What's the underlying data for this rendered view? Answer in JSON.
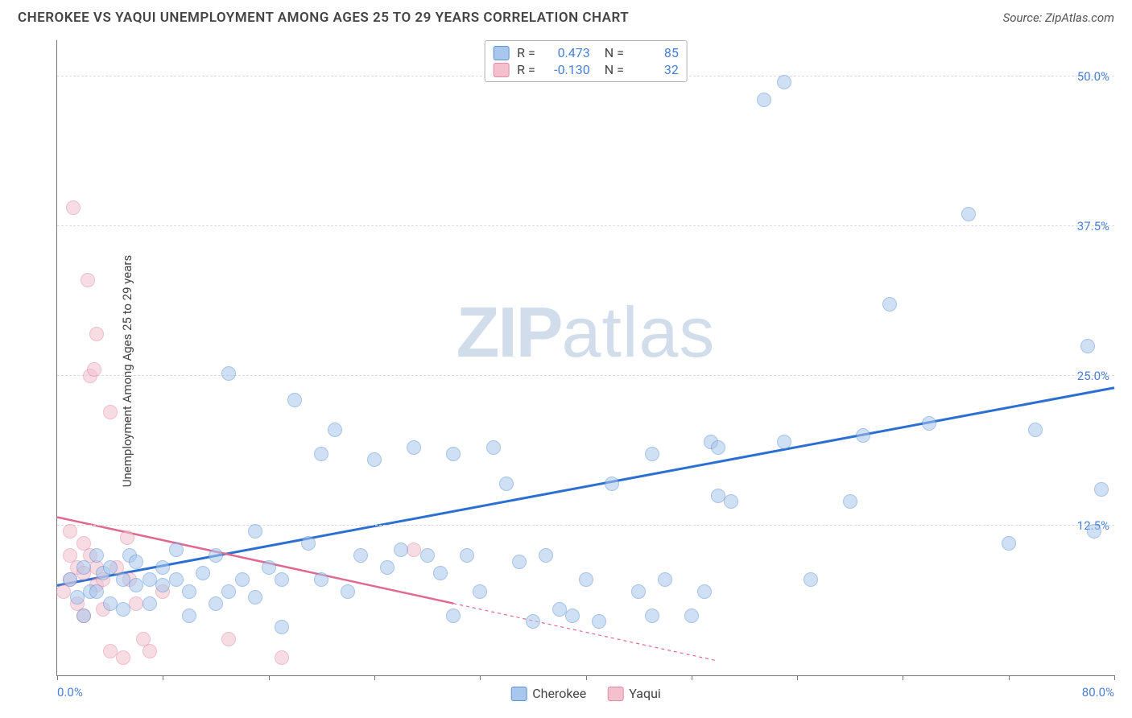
{
  "title": "CHEROKEE VS YAQUI UNEMPLOYMENT AMONG AGES 25 TO 29 YEARS CORRELATION CHART",
  "source": "Source: ZipAtlas.com",
  "ylabel": "Unemployment Among Ages 25 to 29 years",
  "watermark_a": "ZIP",
  "watermark_b": "atlas",
  "chart": {
    "type": "scatter",
    "xlim": [
      0,
      80
    ],
    "ylim": [
      0,
      53
    ],
    "yticks": [
      12.5,
      25.0,
      37.5,
      50.0
    ],
    "ytick_labels": [
      "12.5%",
      "25.0%",
      "37.5%",
      "50.0%"
    ],
    "xlabel_min": "0.0%",
    "xlabel_max": "80.0%",
    "xtick_positions": [
      0,
      8,
      16,
      24,
      32,
      40,
      48,
      56,
      64,
      72,
      80
    ],
    "grid_color": "#dcdcdc",
    "axis_color": "#777777",
    "background_color": "#ffffff",
    "point_radius": 9,
    "point_opacity": 0.55,
    "series": {
      "cherokee": {
        "label": "Cherokee",
        "fill": "#a9c6ec",
        "stroke": "#5f93d4",
        "line_color": "#2b6fd1",
        "R": "0.473",
        "N": "85",
        "trend": {
          "x1": 0,
          "y1": 7.5,
          "x2": 80,
          "y2": 24.0
        },
        "points": [
          [
            1,
            8
          ],
          [
            1.5,
            6.5
          ],
          [
            2,
            9
          ],
          [
            2,
            5
          ],
          [
            2.5,
            7
          ],
          [
            3,
            10
          ],
          [
            3,
            7
          ],
          [
            3.5,
            8.5
          ],
          [
            4,
            9
          ],
          [
            4,
            6
          ],
          [
            5,
            8
          ],
          [
            5,
            5.5
          ],
          [
            5.5,
            10
          ],
          [
            6,
            9.5
          ],
          [
            6,
            7.5
          ],
          [
            7,
            8
          ],
          [
            7,
            6
          ],
          [
            8,
            9
          ],
          [
            8,
            7.5
          ],
          [
            9,
            10.5
          ],
          [
            9,
            8
          ],
          [
            10,
            7
          ],
          [
            10,
            5
          ],
          [
            11,
            8.5
          ],
          [
            12,
            10
          ],
          [
            12,
            6
          ],
          [
            13,
            7
          ],
          [
            13,
            25.2
          ],
          [
            14,
            8
          ],
          [
            15,
            6.5
          ],
          [
            15,
            12
          ],
          [
            16,
            9
          ],
          [
            17,
            8
          ],
          [
            17,
            4
          ],
          [
            18,
            23
          ],
          [
            19,
            11
          ],
          [
            20,
            18.5
          ],
          [
            20,
            8
          ],
          [
            21,
            20.5
          ],
          [
            22,
            7
          ],
          [
            23,
            10
          ],
          [
            24,
            18
          ],
          [
            25,
            9
          ],
          [
            26,
            10.5
          ],
          [
            27,
            19
          ],
          [
            28,
            10
          ],
          [
            29,
            8.5
          ],
          [
            30,
            5
          ],
          [
            30,
            18.5
          ],
          [
            31,
            10
          ],
          [
            32,
            7
          ],
          [
            33,
            19
          ],
          [
            34,
            16
          ],
          [
            35,
            9.5
          ],
          [
            36,
            4.5
          ],
          [
            37,
            10
          ],
          [
            38,
            5.5
          ],
          [
            39,
            5
          ],
          [
            40,
            8
          ],
          [
            41,
            4.5
          ],
          [
            42,
            16
          ],
          [
            44,
            7
          ],
          [
            45,
            18.5
          ],
          [
            45,
            5
          ],
          [
            46,
            8
          ],
          [
            48,
            5
          ],
          [
            49,
            7
          ],
          [
            49.5,
            19.5
          ],
          [
            50,
            19
          ],
          [
            50,
            15
          ],
          [
            51,
            14.5
          ],
          [
            53.5,
            48
          ],
          [
            55,
            49.5
          ],
          [
            55,
            19.5
          ],
          [
            57,
            8
          ],
          [
            60,
            14.5
          ],
          [
            61,
            20
          ],
          [
            63,
            31
          ],
          [
            66,
            21
          ],
          [
            69,
            38.5
          ],
          [
            72,
            11
          ],
          [
            74,
            20.5
          ],
          [
            78,
            27.5
          ],
          [
            78.5,
            12
          ],
          [
            79,
            15.5
          ]
        ]
      },
      "yaqui": {
        "label": "Yaqui",
        "fill": "#f4c0ce",
        "stroke": "#e38aa5",
        "line_color": "#e06990",
        "R": "-0.130",
        "N": "32",
        "trend_solid": {
          "x1": 0,
          "y1": 13.2,
          "x2": 30,
          "y2": 6.0
        },
        "trend_dash": {
          "x1": 30,
          "y1": 6.0,
          "x2": 50,
          "y2": 1.2
        },
        "points": [
          [
            0.5,
            7
          ],
          [
            1,
            10
          ],
          [
            1,
            12
          ],
          [
            1,
            8
          ],
          [
            1.2,
            39
          ],
          [
            1.5,
            6
          ],
          [
            1.5,
            9
          ],
          [
            2,
            11
          ],
          [
            2,
            8.5
          ],
          [
            2,
            5
          ],
          [
            2.3,
            33
          ],
          [
            2.5,
            10
          ],
          [
            2.5,
            25
          ],
          [
            2.8,
            25.5
          ],
          [
            3,
            7.5
          ],
          [
            3,
            28.5
          ],
          [
            3,
            9
          ],
          [
            3.5,
            8
          ],
          [
            3.5,
            5.5
          ],
          [
            4,
            2
          ],
          [
            4,
            22
          ],
          [
            4.5,
            9
          ],
          [
            5,
            1.5
          ],
          [
            5.3,
            11.5
          ],
          [
            5.5,
            8
          ],
          [
            6,
            6
          ],
          [
            6.5,
            3
          ],
          [
            7,
            2
          ],
          [
            8,
            7
          ],
          [
            13,
            3
          ],
          [
            17,
            1.5
          ],
          [
            27,
            10.5
          ]
        ]
      }
    }
  }
}
